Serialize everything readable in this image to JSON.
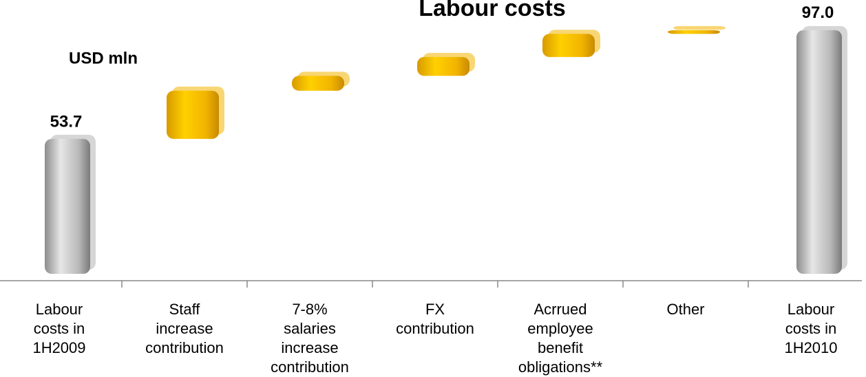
{
  "chart_data": {
    "type": "waterfall",
    "title": "Labour costs",
    "subtitle": "USD mln",
    "categories": [
      [
        "Labour",
        "costs in",
        "1H2009"
      ],
      [
        "Staff",
        "increase",
        "contribution"
      ],
      [
        "7-8%",
        "salaries",
        "increase",
        "contribution"
      ],
      [
        "FX",
        "contribution"
      ],
      [
        "Acrrued",
        "employee",
        "benefit",
        "obligations**"
      ],
      [
        "Other"
      ],
      [
        "Labour",
        "costs in",
        "1H2010"
      ]
    ],
    "values": [
      53.7,
      19.2,
      5.9,
      7.5,
      9.2,
      1.5,
      97.0
    ],
    "measure": [
      "total",
      "relative",
      "relative",
      "relative",
      "relative",
      "relative",
      "total"
    ],
    "value_labels": [
      "53.7",
      null,
      null,
      null,
      null,
      null,
      "97.0"
    ],
    "colors": {
      "total": "#b4b4b4",
      "relative": "#f2b400"
    },
    "ylim": [
      0,
      109
    ]
  }
}
